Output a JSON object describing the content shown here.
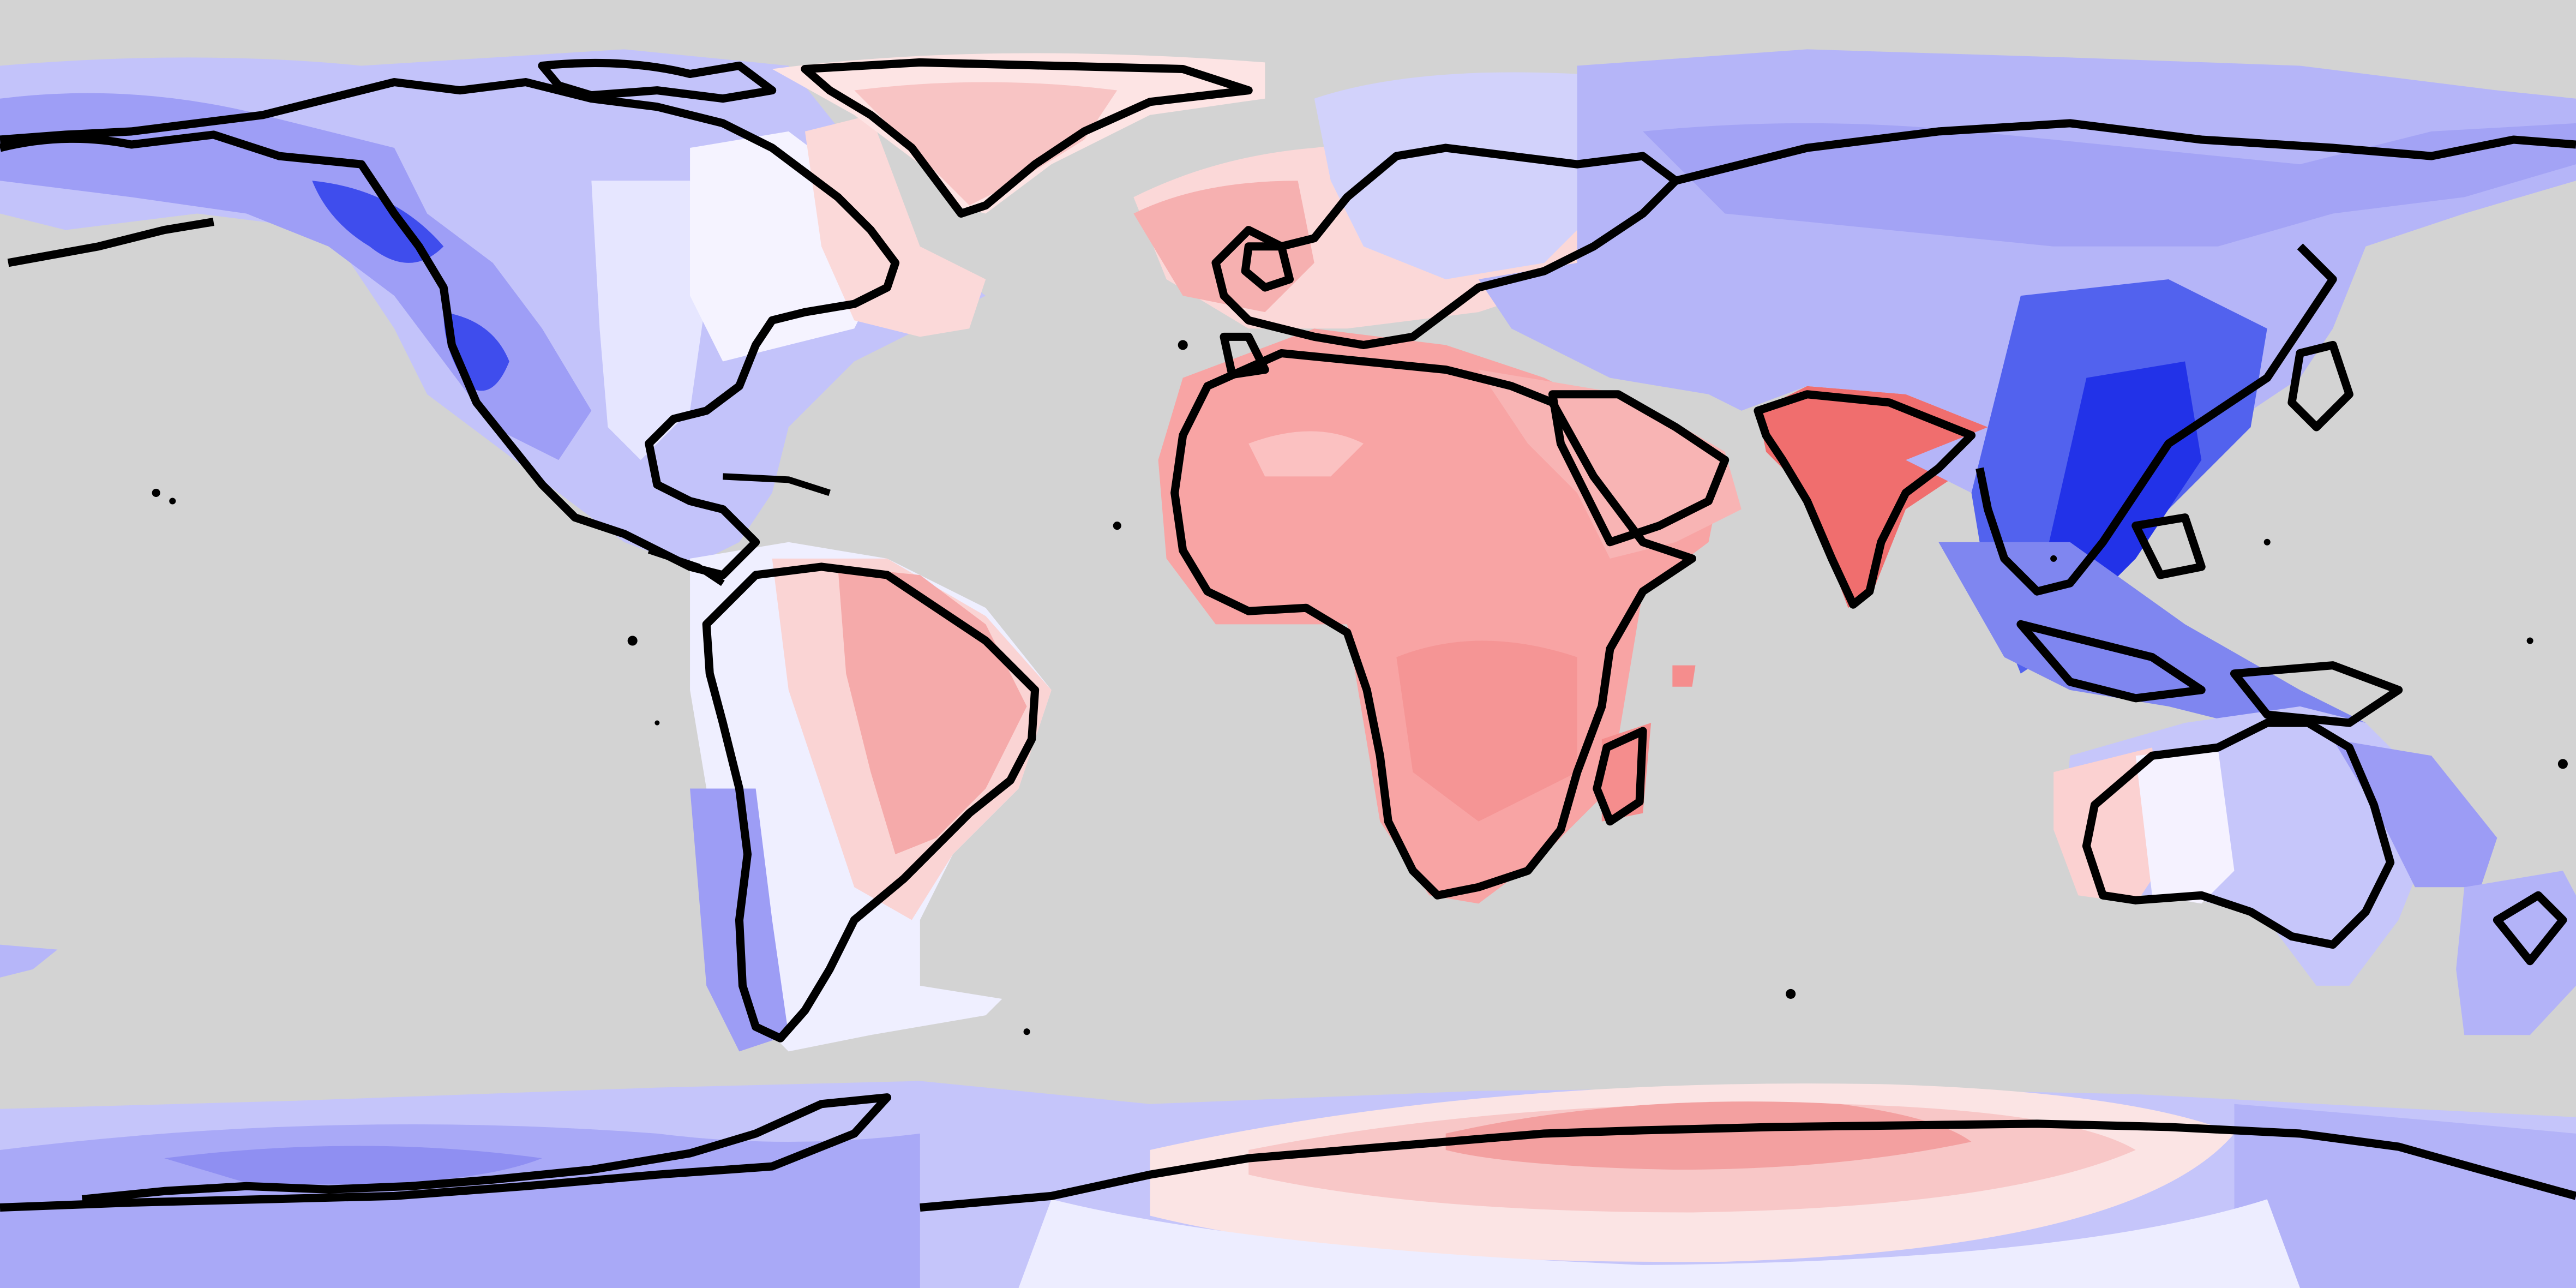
{
  "map": {
    "projection": "equirectangular",
    "colors": {
      "background": "#d3d3d3",
      "coastline": "#000000",
      "positive_light": "#ffe3e3",
      "positive_mid": "#fbb4b4",
      "positive_strong": "#f58888",
      "positive_max": "#f06a6a",
      "neutral": "#f4f4ff",
      "negative_light": "#dcdcff",
      "negative_mid": "#b5b5fb",
      "negative_strong": "#8c8cf5",
      "negative_max": "#2030e6"
    },
    "regions": [
      {
        "name": "north-america",
        "tone": "negative"
      },
      {
        "name": "greenland",
        "tone": "positive"
      },
      {
        "name": "south-america",
        "tone": "positive"
      },
      {
        "name": "europe-north",
        "tone": "mixed"
      },
      {
        "name": "africa",
        "tone": "positive"
      },
      {
        "name": "arabia",
        "tone": "positive"
      },
      {
        "name": "india",
        "tone": "positive"
      },
      {
        "name": "asia",
        "tone": "negative"
      },
      {
        "name": "southeast-asia",
        "tone": "negative"
      },
      {
        "name": "australia",
        "tone": "negative"
      },
      {
        "name": "new-zealand",
        "tone": "negative"
      },
      {
        "name": "antarctica-west",
        "tone": "negative"
      },
      {
        "name": "antarctica-east",
        "tone": "positive"
      }
    ]
  }
}
